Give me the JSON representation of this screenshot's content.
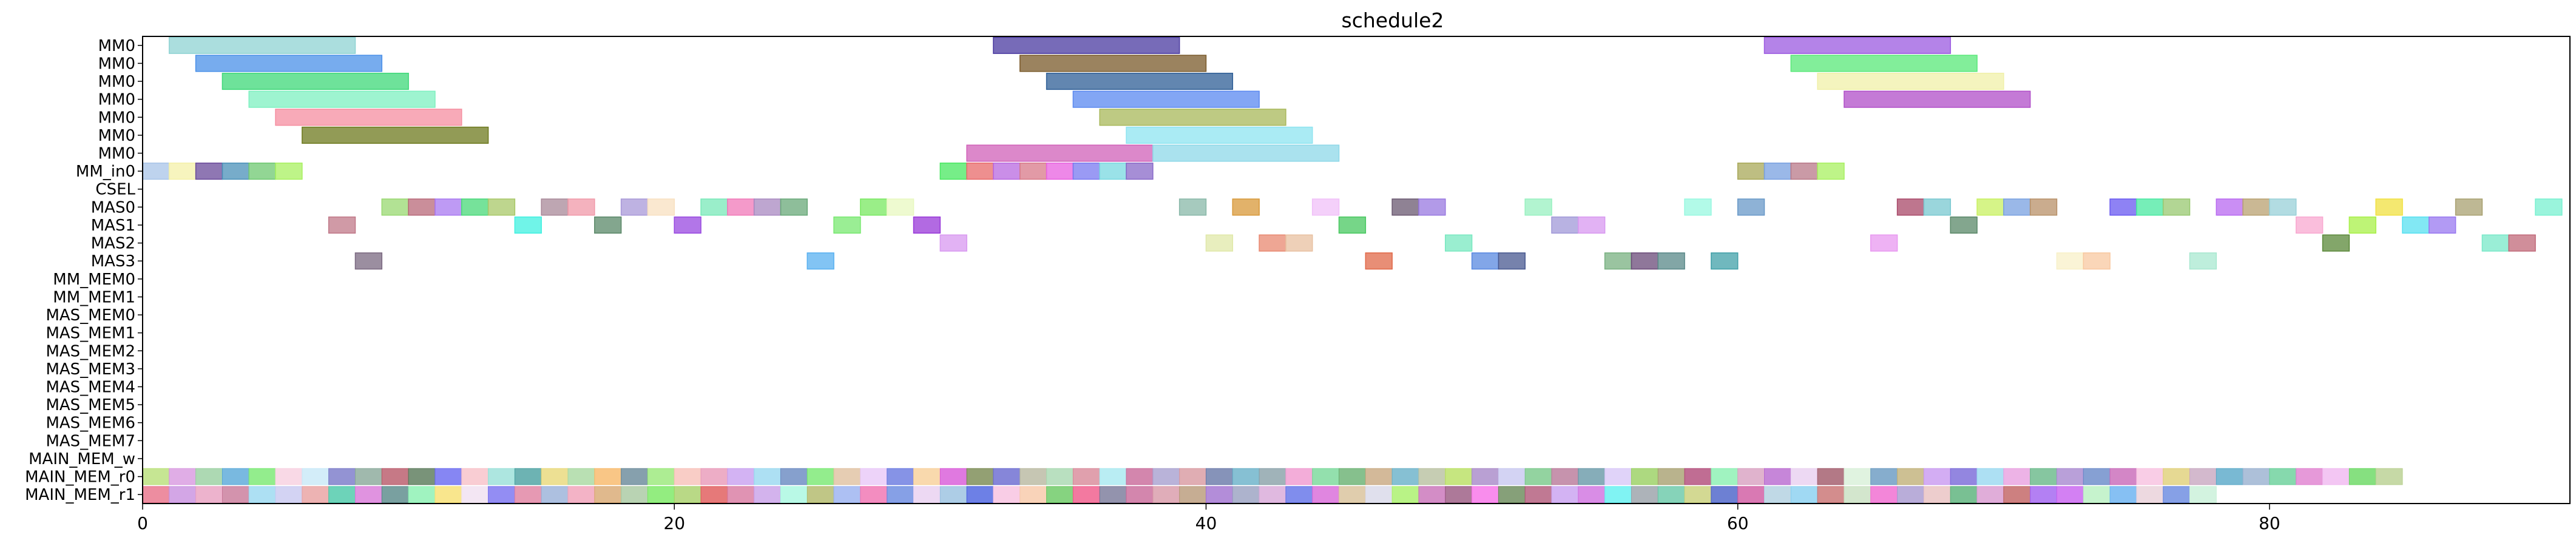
{
  "chart_data": {
    "type": "gantt",
    "title": "schedule2",
    "xlabel": "",
    "ylabel": "",
    "xlim": [
      0,
      90
    ],
    "xticks": [
      0,
      20,
      40,
      60,
      80
    ],
    "grid": false,
    "rows": [
      "MM0",
      "MM0",
      "MM0",
      "MM0",
      "MM0",
      "MM0",
      "MM0",
      "MM_in0",
      "CSEL",
      "MAS0",
      "MAS1",
      "MAS2",
      "MAS3",
      "MM_MEM0",
      "MM_MEM1",
      "MAS_MEM0",
      "MAS_MEM1",
      "MAS_MEM2",
      "MAS_MEM3",
      "MAS_MEM4",
      "MAS_MEM5",
      "MAS_MEM6",
      "MAS_MEM7",
      "MAIN_MEM_w",
      "MAIN_MEM_r0",
      "MAIN_MEM_r1"
    ],
    "tasks": [
      {
        "row": 0,
        "start": 1,
        "end": 8,
        "color": "#8fd3d3"
      },
      {
        "row": 0,
        "start": 32,
        "end": 39,
        "color": "#4a3aa0"
      },
      {
        "row": 0,
        "start": 61,
        "end": 68,
        "color": "#9b59e0"
      },
      {
        "row": 1,
        "start": 2,
        "end": 9,
        "color": "#4a90e8"
      },
      {
        "row": 1,
        "start": 33,
        "end": 40,
        "color": "#7a5a2a"
      },
      {
        "row": 1,
        "start": 62,
        "end": 69,
        "color": "#58e878"
      },
      {
        "row": 2,
        "start": 3,
        "end": 10,
        "color": "#3ed878"
      },
      {
        "row": 2,
        "start": 34,
        "end": 41,
        "color": "#2e5e96"
      },
      {
        "row": 2,
        "start": 63,
        "end": 70,
        "color": "#f0f0a8"
      },
      {
        "row": 3,
        "start": 4,
        "end": 11,
        "color": "#7ef0c0"
      },
      {
        "row": 3,
        "start": 35,
        "end": 42,
        "color": "#5a88f0"
      },
      {
        "row": 3,
        "start": 64,
        "end": 71,
        "color": "#b04ec8"
      },
      {
        "row": 4,
        "start": 5,
        "end": 12,
        "color": "#f58ea0"
      },
      {
        "row": 4,
        "start": 36,
        "end": 43,
        "color": "#a8b85a"
      },
      {
        "row": 5,
        "start": 6,
        "end": 13,
        "color": "#6e7a1e"
      },
      {
        "row": 5,
        "start": 37,
        "end": 44,
        "color": "#8ee4f0"
      },
      {
        "row": 6,
        "start": 31,
        "end": 38,
        "color": "#d060b8"
      },
      {
        "row": 6,
        "start": 38,
        "end": 45,
        "color": "#8ed8e8"
      },
      {
        "row": 7,
        "start": 0,
        "end": 1,
        "color": "#a8c4e8"
      },
      {
        "row": 7,
        "start": 1,
        "end": 2,
        "color": "#f4f0a8"
      },
      {
        "row": 7,
        "start": 2,
        "end": 3,
        "color": "#6a4a9a"
      },
      {
        "row": 7,
        "start": 3,
        "end": 4,
        "color": "#4a90b8"
      },
      {
        "row": 7,
        "start": 4,
        "end": 5,
        "color": "#6ec870"
      },
      {
        "row": 7,
        "start": 5,
        "end": 6,
        "color": "#a8f060"
      },
      {
        "row": 7,
        "start": 30,
        "end": 31,
        "color": "#48e860"
      },
      {
        "row": 7,
        "start": 31,
        "end": 32,
        "color": "#e86a6a"
      },
      {
        "row": 7,
        "start": 32,
        "end": 33,
        "color": "#b868e0"
      },
      {
        "row": 7,
        "start": 33,
        "end": 34,
        "color": "#d87888"
      },
      {
        "row": 7,
        "start": 34,
        "end": 35,
        "color": "#e860e0"
      },
      {
        "row": 7,
        "start": 35,
        "end": 36,
        "color": "#7878f0"
      },
      {
        "row": 7,
        "start": 36,
        "end": 37,
        "color": "#78d8e0"
      },
      {
        "row": 7,
        "start": 37,
        "end": 38,
        "color": "#8868c8"
      },
      {
        "row": 7,
        "start": 60,
        "end": 61,
        "color": "#a8a858"
      },
      {
        "row": 7,
        "start": 61,
        "end": 62,
        "color": "#78a0e0"
      },
      {
        "row": 7,
        "start": 62,
        "end": 63,
        "color": "#b87888"
      },
      {
        "row": 7,
        "start": 63,
        "end": 64,
        "color": "#a8f060"
      },
      {
        "row": 9,
        "start": 9,
        "end": 10,
        "color": "#98d870"
      },
      {
        "row": 9,
        "start": 10,
        "end": 11,
        "color": "#b86878"
      },
      {
        "row": 9,
        "start": 11,
        "end": 12,
        "color": "#a878f0"
      },
      {
        "row": 9,
        "start": 12,
        "end": 13,
        "color": "#48d878"
      },
      {
        "row": 9,
        "start": 13,
        "end": 14,
        "color": "#a8c868"
      },
      {
        "row": 9,
        "start": 15,
        "end": 16,
        "color": "#a88898"
      },
      {
        "row": 9,
        "start": 16,
        "end": 17,
        "color": "#f098a8"
      },
      {
        "row": 9,
        "start": 18,
        "end": 19,
        "color": "#a898d8"
      },
      {
        "row": 9,
        "start": 19,
        "end": 20,
        "color": "#f8e0c0"
      },
      {
        "row": 9,
        "start": 21,
        "end": 22,
        "color": "#78e8b8"
      },
      {
        "row": 9,
        "start": 22,
        "end": 23,
        "color": "#f078b8"
      },
      {
        "row": 9,
        "start": 23,
        "end": 24,
        "color": "#a888c0"
      },
      {
        "row": 9,
        "start": 24,
        "end": 25,
        "color": "#68a878"
      },
      {
        "row": 9,
        "start": 27,
        "end": 28,
        "color": "#78e860"
      },
      {
        "row": 9,
        "start": 28,
        "end": 29,
        "color": "#e8f8c0"
      },
      {
        "row": 9,
        "start": 39,
        "end": 40,
        "color": "#88b8a8"
      },
      {
        "row": 9,
        "start": 41,
        "end": 42,
        "color": "#d89838"
      },
      {
        "row": 9,
        "start": 44,
        "end": 45,
        "color": "#f0c0f8"
      },
      {
        "row": 9,
        "start": 47,
        "end": 48,
        "color": "#6a5870"
      },
      {
        "row": 9,
        "start": 48,
        "end": 49,
        "color": "#9878e0"
      },
      {
        "row": 9,
        "start": 52,
        "end": 53,
        "color": "#98f0c0"
      },
      {
        "row": 9,
        "start": 58,
        "end": 59,
        "color": "#98f8e0"
      },
      {
        "row": 9,
        "start": 60,
        "end": 61,
        "color": "#6898c8"
      },
      {
        "row": 9,
        "start": 66,
        "end": 67,
        "color": "#a84868"
      },
      {
        "row": 9,
        "start": 67,
        "end": 68,
        "color": "#78c8d0"
      },
      {
        "row": 9,
        "start": 69,
        "end": 70,
        "color": "#c8f060"
      },
      {
        "row": 9,
        "start": 70,
        "end": 71,
        "color": "#78a0e0"
      },
      {
        "row": 9,
        "start": 71,
        "end": 72,
        "color": "#b89068"
      },
      {
        "row": 9,
        "start": 74,
        "end": 75,
        "color": "#6858f0"
      },
      {
        "row": 9,
        "start": 75,
        "end": 76,
        "color": "#48e8a0"
      },
      {
        "row": 9,
        "start": 76,
        "end": 77,
        "color": "#98c870"
      },
      {
        "row": 9,
        "start": 78,
        "end": 79,
        "color": "#b868f0"
      },
      {
        "row": 9,
        "start": 79,
        "end": 80,
        "color": "#b8a070"
      },
      {
        "row": 9,
        "start": 80,
        "end": 81,
        "color": "#98d0d8"
      },
      {
        "row": 9,
        "start": 84,
        "end": 85,
        "color": "#f0e040"
      },
      {
        "row": 9,
        "start": 87,
        "end": 88,
        "color": "#a8a070"
      },
      {
        "row": 9,
        "start": 90,
        "end": 91,
        "color": "#78f0d0"
      },
      {
        "row": 10,
        "start": 7,
        "end": 8,
        "color": "#c07888"
      },
      {
        "row": 10,
        "start": 14,
        "end": 15,
        "color": "#40f0e0"
      },
      {
        "row": 10,
        "start": 17,
        "end": 18,
        "color": "#5a8868"
      },
      {
        "row": 10,
        "start": 20,
        "end": 21,
        "color": "#9848e0"
      },
      {
        "row": 10,
        "start": 26,
        "end": 27,
        "color": "#78e870"
      },
      {
        "row": 10,
        "start": 29,
        "end": 30,
        "color": "#9838d8"
      },
      {
        "row": 10,
        "start": 45,
        "end": 46,
        "color": "#48c860"
      },
      {
        "row": 10,
        "start": 53,
        "end": 54,
        "color": "#a098d8"
      },
      {
        "row": 10,
        "start": 54,
        "end": 55,
        "color": "#d898f0"
      },
      {
        "row": 10,
        "start": 68,
        "end": 69,
        "color": "#5a8868"
      },
      {
        "row": 10,
        "start": 81,
        "end": 82,
        "color": "#f8a8d0"
      },
      {
        "row": 10,
        "start": 83,
        "end": 84,
        "color": "#a8f048"
      },
      {
        "row": 10,
        "start": 85,
        "end": 86,
        "color": "#58e0f0"
      },
      {
        "row": 10,
        "start": 86,
        "end": 87,
        "color": "#9878f0"
      },
      {
        "row": 11,
        "start": 30,
        "end": 31,
        "color": "#d898f0"
      },
      {
        "row": 11,
        "start": 40,
        "end": 41,
        "color": "#e0e8a8"
      },
      {
        "row": 11,
        "start": 42,
        "end": 43,
        "color": "#e88870"
      },
      {
        "row": 11,
        "start": 43,
        "end": 44,
        "color": "#e8c0a0"
      },
      {
        "row": 11,
        "start": 49,
        "end": 50,
        "color": "#78e8c0"
      },
      {
        "row": 11,
        "start": 65,
        "end": 66,
        "color": "#e898f0"
      },
      {
        "row": 11,
        "start": 82,
        "end": 83,
        "color": "#5a8838"
      },
      {
        "row": 11,
        "start": 88,
        "end": 89,
        "color": "#78e8c8"
      },
      {
        "row": 11,
        "start": 89,
        "end": 90,
        "color": "#c06878"
      },
      {
        "row": 12,
        "start": 8,
        "end": 9,
        "color": "#7a6880"
      },
      {
        "row": 12,
        "start": 25,
        "end": 26,
        "color": "#58b0f0"
      },
      {
        "row": 12,
        "start": 46,
        "end": 47,
        "color": "#e06848"
      },
      {
        "row": 12,
        "start": 50,
        "end": 51,
        "color": "#5888e0"
      },
      {
        "row": 12,
        "start": 51,
        "end": 52,
        "color": "#485890"
      },
      {
        "row": 12,
        "start": 55,
        "end": 56,
        "color": "#78b080"
      },
      {
        "row": 12,
        "start": 56,
        "end": 57,
        "color": "#6a4a78"
      },
      {
        "row": 12,
        "start": 57,
        "end": 58,
        "color": "#588888"
      },
      {
        "row": 12,
        "start": 59,
        "end": 60,
        "color": "#40a0a8"
      },
      {
        "row": 12,
        "start": 72,
        "end": 73,
        "color": "#f8f0c8"
      },
      {
        "row": 12,
        "start": 73,
        "end": 74,
        "color": "#f8c8a0"
      },
      {
        "row": 12,
        "start": 77,
        "end": 78,
        "color": "#a8e8d0"
      }
    ],
    "mem_rows": {
      "MAIN_MEM_r0": [
        "#b8e078",
        "#d898e0",
        "#98d0a0",
        "#58a8d8",
        "#78e870",
        "#f8d0e0",
        "#c8e8f8",
        "#7878c8",
        "#88a898",
        "#b85868",
        "#587858",
        "#6868f0",
        "#f8c0c8",
        "#98e0d8",
        "#48a0a0",
        "#e8d878",
        "#a8d8a0",
        "#f8b868",
        "#688898",
        "#98e878",
        "#f8c0b8",
        "#e898b8",
        "#c8a0f0",
        "#98d8f0",
        "#6888c0",
        "#78e870",
        "#e0c0a0",
        "#e8c8f8",
        "#6878e0",
        "#f8d098",
        "#d858d8",
        "#788850",
        "#6868d0",
        "#b8b8a0",
        "#a8d8b0",
        "#d88898",
        "#a8e8f0",
        "#c86898",
        "#a8a0d0",
        "#d898a0",
        "#6878a8",
        "#68b0c8",
        "#88a0a8",
        "#f098d0",
        "#78d898",
        "#68b070",
        "#c8a880",
        "#68b0c8",
        "#b8c0a0",
        "#b8e060",
        "#a888c8",
        "#c8c8f0",
        "#78c888",
        "#b87898",
        "#6898a8",
        "#d8c8f8",
        "#98d060",
        "#a8a070",
        "#b04878",
        "#88f0b0",
        "#d8a0c0",
        "#b868d0",
        "#e8d0f0",
        "#a05868",
        "#d8f0d8",
        "#6898c0",
        "#c0b078",
        "#c898f0",
        "#7868d8",
        "#98d8f0",
        "#e8a0e0",
        "#68b888",
        "#a888d0",
        "#6888c8",
        "#c868b8",
        "#f8c0e0",
        "#e0d078",
        "#c8a8c0",
        "#58a8c8",
        "#98b0d0",
        "#68d098",
        "#e080d0",
        "#f0b8f0",
        "#68d860",
        "#b8d090"
      ],
      "MAIN_MEM_r1": [
        "#e87088",
        "#c890e0",
        "#e8a0c0",
        "#c87898",
        "#98d8f0",
        "#c8c8f0",
        "#e8a0a0",
        "#48c8a8",
        "#d878d8",
        "#588888",
        "#88f0b0",
        "#f8e070",
        "#f0e0f0",
        "#7870f0",
        "#e080a0",
        "#98b0d8",
        "#f0a0b8",
        "#d8a870",
        "#a8c8a0",
        "#78e860",
        "#a8d068",
        "#e05858",
        "#d878a0",
        "#c8a0e8",
        "#a8f8e0",
        "#b0b868",
        "#98b0f0",
        "#f070b0",
        "#6888e0",
        "#e8d0f0",
        "#98c0e0",
        "#4860e0",
        "#f8c0e0",
        "#f8c8a8",
        "#68c860",
        "#f05888",
        "#787898",
        "#c86898",
        "#d898a8",
        "#b89878",
        "#a070d0",
        "#98a0c0",
        "#d8a8d8",
        "#6070e8",
        "#d868d8",
        "#d8c098",
        "#d8d8e8",
        "#a8f068",
        "#c870b8",
        "#985880",
        "#f870e8",
        "#688858",
        "#b05878",
        "#c8a0f0",
        "#d070e0",
        "#60f0f0",
        "#98a0a8",
        "#68c8a8",
        "#c8d078",
        "#4860c8",
        "#d058a0",
        "#b0d0e0",
        "#88d0f0",
        "#c87070",
        "#c8e0c0",
        "#f068d0",
        "#a898d0",
        "#e8c0c0",
        "#58b078",
        "#d898d0",
        "#c06060",
        "#a060f0",
        "#c860f0",
        "#b8f0c0",
        "#68b0f0",
        "#e8d0d8",
        "#6888e0",
        "#c8f0d8"
      ]
    }
  }
}
